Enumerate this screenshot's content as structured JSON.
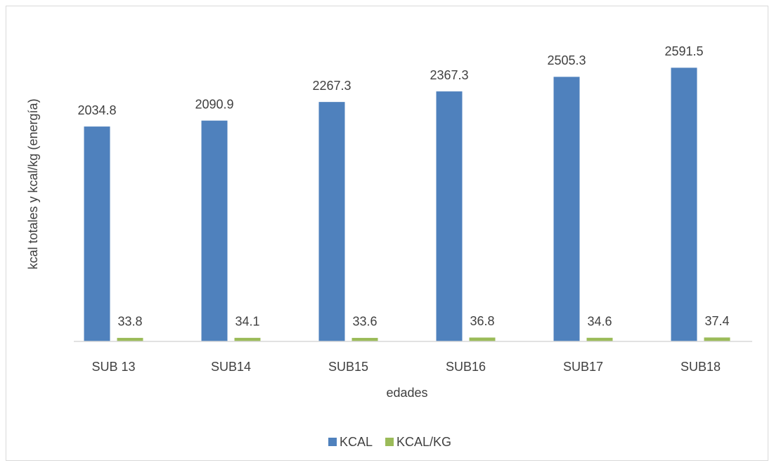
{
  "chart_data": {
    "type": "bar",
    "x_label": "edades",
    "y_label": "kcal totales y kcal/kg (energía)",
    "categories": [
      "SUB 13",
      "SUB14",
      "SUB15",
      "SUB16",
      "SUB17",
      "SUB18"
    ],
    "series": [
      {
        "name": "KCAL",
        "color": "#4f81bd",
        "values": [
          2034.8,
          2090.9,
          2267.3,
          2367.3,
          2505.3,
          2591.5
        ]
      },
      {
        "name": "KCAL/KG",
        "color": "#9bbb59",
        "values": [
          33.8,
          34.1,
          33.6,
          36.8,
          34.6,
          37.4
        ]
      }
    ],
    "ylim": [
      0,
      3000
    ],
    "grid": false,
    "legend": "bottom"
  }
}
